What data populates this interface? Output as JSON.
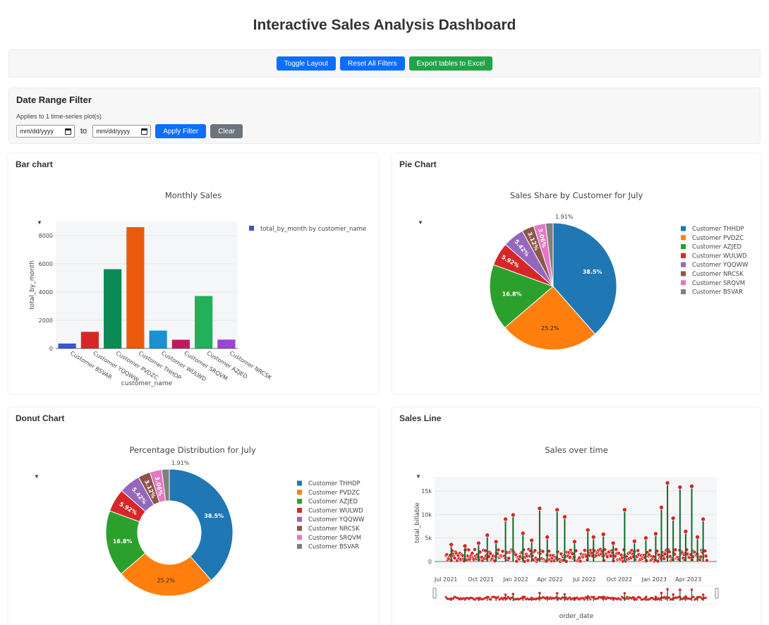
{
  "page": {
    "title": "Interactive Sales Analysis Dashboard"
  },
  "toolbar": {
    "toggle_label": "Toggle Layout",
    "reset_label": "Reset All Filters",
    "export_label": "Export tables to Excel"
  },
  "date_filter": {
    "heading": "Date Range Filter",
    "hint": "Applies to 1 time-series plot(s)",
    "start_placeholder": "mm/dd/yyyy",
    "end_placeholder": "mm/dd/yyyy",
    "to_label": "to",
    "apply_label": "Apply Filter",
    "clear_label": "Clear"
  },
  "colors": {
    "accent_blue": "#0d6efd",
    "accent_green": "#21a348",
    "line_green": "#0b6b2b",
    "marker_red": "#d62728"
  },
  "cards": {
    "bar": {
      "heading": "Bar chart"
    },
    "pie": {
      "heading": "Pie Chart"
    },
    "donut": {
      "heading": "Donut Chart"
    },
    "line": {
      "heading": "Sales Line"
    }
  },
  "chart_data": [
    {
      "type": "bar",
      "title": "Monthly Sales",
      "xlabel": "customer_name",
      "ylabel": "total_by_month",
      "legend": "total_by_month by customer_name",
      "categories": [
        "Customer BSVAR",
        "Customer YQQWW",
        "Customer PVDZC",
        "Customer THHDP",
        "Customer WULWD",
        "Customer SRQVM",
        "Customer AZJED",
        "Customer NRCSK"
      ],
      "values": [
        350,
        1180,
        5620,
        8600,
        1270,
        620,
        3720,
        630
      ],
      "bar_colors": [
        "#3b55cc",
        "#d62728",
        "#0b8a55",
        "#ea5a0c",
        "#1a92cf",
        "#c2185b",
        "#22b05a",
        "#9b45d6"
      ],
      "ylim": [
        0,
        9000
      ],
      "yticks": [
        0,
        2000,
        4000,
        6000,
        8000
      ],
      "ytick_labels": [
        "0",
        "2000",
        "4000",
        "6000",
        "8000"
      ]
    },
    {
      "type": "pie",
      "title": "Sales Share by Customer for July",
      "labels": [
        "Customer THHDP",
        "Customer PVDZC",
        "Customer AZJED",
        "Customer WULWD",
        "Customer YQQWW",
        "Customer NRCSK",
        "Customer SRQVM",
        "Customer BSVAR"
      ],
      "values": [
        38.5,
        25.2,
        16.8,
        5.92,
        5.42,
        3.12,
        3.06,
        1.91
      ],
      "value_labels": [
        "38.5%",
        "25.2%",
        "16.8%",
        "5.92%",
        "5.42%",
        "3.12%",
        "3.06%",
        "1.91%"
      ],
      "colors": [
        "#1f77b4",
        "#ff7f0e",
        "#2ca02c",
        "#d62728",
        "#9467bd",
        "#8c564b",
        "#e377c2",
        "#7f7f7f"
      ]
    },
    {
      "type": "pie",
      "title": "Percentage Distribution for July",
      "hole": 0.5,
      "labels": [
        "Customer THHDP",
        "Customer PVDZC",
        "Customer AZJED",
        "Customer WULWD",
        "Customer YQQWW",
        "Customer NRCSK",
        "Customer SRQVM",
        "Customer BSVAR"
      ],
      "values": [
        38.5,
        25.2,
        16.8,
        5.92,
        5.42,
        3.12,
        3.06,
        1.91
      ],
      "value_labels": [
        "38.5%",
        "25.2%",
        "16.8%",
        "5.92%",
        "5.42%",
        "3.12%",
        "3.06%",
        "1.91%"
      ],
      "colors": [
        "#1f77b4",
        "#ff7f0e",
        "#2ca02c",
        "#d62728",
        "#9467bd",
        "#8c564b",
        "#e377c2",
        "#7f7f7f"
      ]
    },
    {
      "type": "line",
      "title": "Sales over time",
      "xlabel": "order_date",
      "ylabel": "total_billable",
      "x_range": [
        "2021-06-01",
        "2023-06-15"
      ],
      "xtick_labels": [
        "Jul 2021",
        "Oct 2021",
        "Jan 2022",
        "Apr 2022",
        "Jul 2022",
        "Oct 2022",
        "Jan 2023",
        "Apr 2023"
      ],
      "xtick_dates": [
        "2021-07-01",
        "2021-10-01",
        "2022-01-01",
        "2022-04-01",
        "2022-07-01",
        "2022-10-01",
        "2023-01-01",
        "2023-04-01"
      ],
      "ylim": [
        -1500,
        18000
      ],
      "yticks": [
        0,
        5000,
        10000,
        15000
      ],
      "ytick_labels": [
        "0",
        "5k",
        "10k",
        "15k"
      ],
      "spikes": [
        {
          "date": "2021-07-15",
          "value": 3600
        },
        {
          "date": "2021-08-20",
          "value": 3300
        },
        {
          "date": "2021-09-25",
          "value": 3900
        },
        {
          "date": "2021-10-18",
          "value": 5600
        },
        {
          "date": "2021-11-10",
          "value": 4200
        },
        {
          "date": "2021-12-05",
          "value": 9000
        },
        {
          "date": "2021-12-25",
          "value": 9900
        },
        {
          "date": "2022-01-20",
          "value": 6000
        },
        {
          "date": "2022-02-12",
          "value": 4500
        },
        {
          "date": "2022-03-05",
          "value": 11300
        },
        {
          "date": "2022-03-25",
          "value": 5200
        },
        {
          "date": "2022-04-20",
          "value": 11000
        },
        {
          "date": "2022-05-10",
          "value": 9500
        },
        {
          "date": "2022-06-05",
          "value": 4200
        },
        {
          "date": "2022-07-10",
          "value": 6700
        },
        {
          "date": "2022-07-25",
          "value": 5200
        },
        {
          "date": "2022-08-20",
          "value": 5800
        },
        {
          "date": "2022-09-15",
          "value": 3900
        },
        {
          "date": "2022-10-15",
          "value": 11000
        },
        {
          "date": "2022-11-10",
          "value": 4300
        },
        {
          "date": "2022-12-10",
          "value": 5000
        },
        {
          "date": "2023-01-05",
          "value": 5900
        },
        {
          "date": "2023-01-20",
          "value": 11500
        },
        {
          "date": "2023-02-05",
          "value": 16700
        },
        {
          "date": "2023-02-20",
          "value": 9200
        },
        {
          "date": "2023-03-10",
          "value": 15800
        },
        {
          "date": "2023-03-25",
          "value": 6400
        },
        {
          "date": "2023-04-10",
          "value": 16000
        },
        {
          "date": "2023-04-25",
          "value": 5200
        },
        {
          "date": "2023-05-10",
          "value": 9000
        }
      ]
    }
  ]
}
